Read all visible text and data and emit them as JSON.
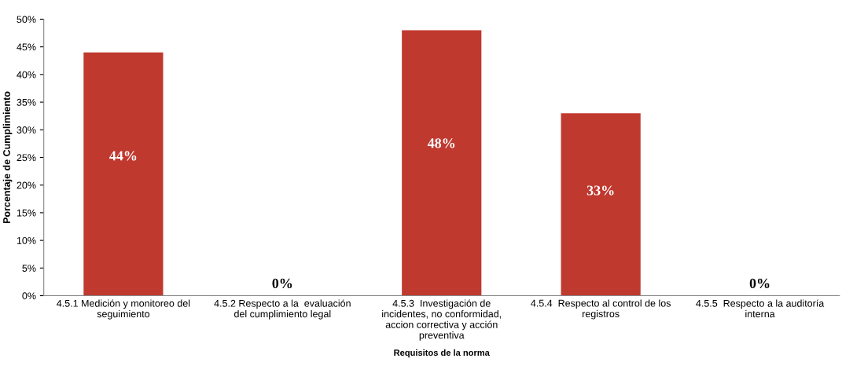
{
  "chart_data": {
    "type": "bar",
    "categories": [
      "4.5.1 Medición y monitoreo del\nseguimiento",
      "4.5.2 Respecto a la  evaluación\ndel cumplimiento legal",
      "4.5.3  Investigación de\nincidentes, no conformidad,\naccion correctiva y acción\npreventiva",
      "4.5.4  Respecto al control de los\nregistros",
      "4.5.5  Respecto a la auditoría\ninterna"
    ],
    "values": [
      44,
      0,
      48,
      33,
      0
    ],
    "value_labels": [
      "44%",
      "0%",
      "48%",
      "33%",
      "0%"
    ],
    "color": "#c0392f",
    "xlabel": "Requisitos de la norma",
    "ylabel": "Porcentaje de Cumplimiento",
    "ylim": [
      0,
      50
    ],
    "yticks": [
      {
        "value": 0,
        "label": "0%"
      },
      {
        "value": 5,
        "label": "5%"
      },
      {
        "value": 10,
        "label": "10%"
      },
      {
        "value": 15,
        "label": "15%"
      },
      {
        "value": 20,
        "label": "20%"
      },
      {
        "value": 25,
        "label": "25%"
      },
      {
        "value": 30,
        "label": "30%"
      },
      {
        "value": 35,
        "label": "35%"
      },
      {
        "value": 40,
        "label": "40%"
      },
      {
        "value": 45,
        "label": "45%"
      },
      {
        "value": 50,
        "label": "50%"
      }
    ],
    "grid": false,
    "legend": false
  }
}
